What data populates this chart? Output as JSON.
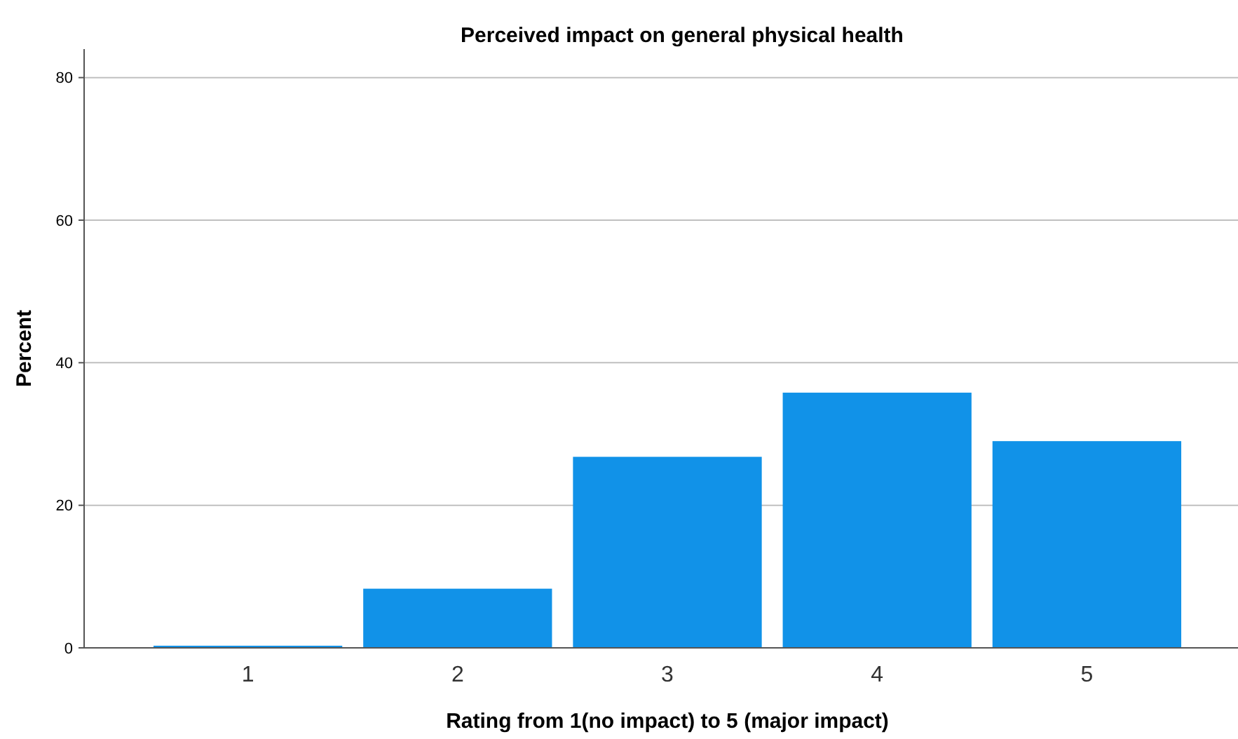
{
  "chart_data": {
    "type": "bar",
    "title": "Perceived impact on general physical health",
    "xlabel": "Rating from 1(no impact) to 5 (major impact)",
    "ylabel": "Percent",
    "categories": [
      "1",
      "2",
      "3",
      "4",
      "5"
    ],
    "values": [
      0.3,
      8.3,
      26.8,
      35.8,
      29.0
    ],
    "color": "#1192e8",
    "ylim": [
      0,
      84
    ],
    "yticks": [
      0,
      20,
      40,
      60,
      80
    ],
    "grid": "y"
  }
}
